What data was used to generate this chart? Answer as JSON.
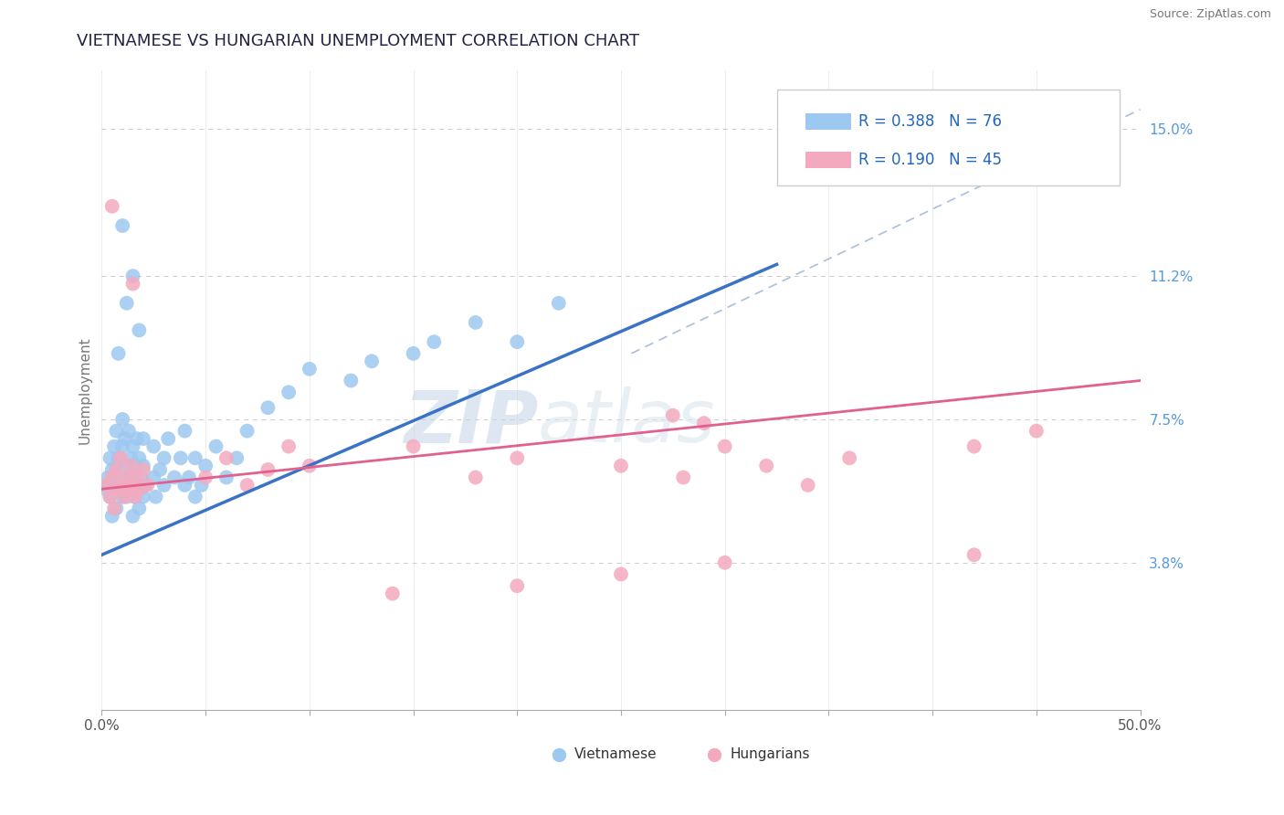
{
  "title": "VIETNAMESE VS HUNGARIAN UNEMPLOYMENT CORRELATION CHART",
  "source": "Source: ZipAtlas.com",
  "ylabel": "Unemployment",
  "xlim": [
    0.0,
    0.5
  ],
  "ylim": [
    0.0,
    0.165
  ],
  "yticks_right": [
    0.038,
    0.075,
    0.112,
    0.15
  ],
  "ytick_right_labels": [
    "3.8%",
    "7.5%",
    "11.2%",
    "15.0%"
  ],
  "r_vietnamese": 0.388,
  "n_vietnamese": 76,
  "r_hungarian": 0.19,
  "n_hungarian": 45,
  "color_vietnamese": "#9DC8F0",
  "color_hungarian": "#F4AABE",
  "color_line_vietnamese": "#3A72C6",
  "color_line_hungarian": "#E06090",
  "color_dashed": "#AABEDD",
  "watermark_zip": "ZIP",
  "watermark_atlas": "atlas",
  "background_color": "#FFFFFF",
  "grid_color": "#CCCCCC",
  "viet_line_x": [
    0.0,
    0.325
  ],
  "viet_line_y": [
    0.04,
    0.115
  ],
  "hung_line_x": [
    0.0,
    0.5
  ],
  "hung_line_y": [
    0.057,
    0.085
  ],
  "dash_line_x": [
    0.255,
    0.5
  ],
  "dash_line_y": [
    0.092,
    0.155
  ]
}
